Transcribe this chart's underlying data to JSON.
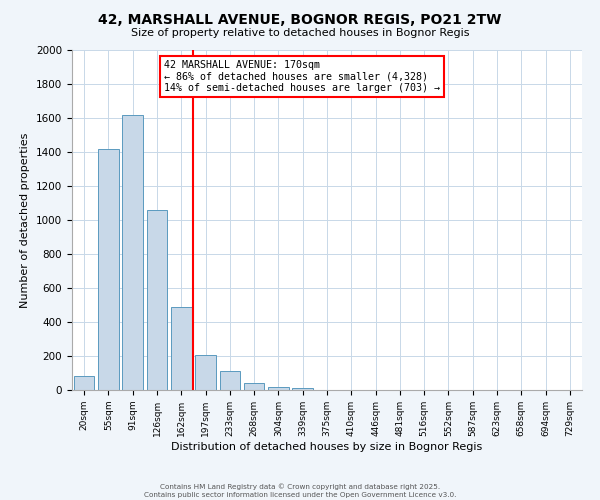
{
  "title_line1": "42, MARSHALL AVENUE, BOGNOR REGIS, PO21 2TW",
  "title_line2": "Size of property relative to detached houses in Bognor Regis",
  "xlabel": "Distribution of detached houses by size in Bognor Regis",
  "ylabel": "Number of detached properties",
  "bar_labels": [
    "20sqm",
    "55sqm",
    "91sqm",
    "126sqm",
    "162sqm",
    "197sqm",
    "233sqm",
    "268sqm",
    "304sqm",
    "339sqm",
    "375sqm",
    "410sqm",
    "446sqm",
    "481sqm",
    "516sqm",
    "552sqm",
    "587sqm",
    "623sqm",
    "658sqm",
    "694sqm",
    "729sqm"
  ],
  "bar_values": [
    80,
    1420,
    1620,
    1060,
    490,
    205,
    110,
    40,
    20,
    10,
    0,
    0,
    0,
    0,
    0,
    0,
    0,
    0,
    0,
    0,
    0
  ],
  "bar_color": "#c8d8e8",
  "bar_edgecolor": "#5a9abf",
  "vline_color": "red",
  "annotation_title": "42 MARSHALL AVENUE: 170sqm",
  "annotation_line2": "← 86% of detached houses are smaller (4,328)",
  "annotation_line3": "14% of semi-detached houses are larger (703) →",
  "ylim": [
    0,
    2000
  ],
  "yticks": [
    0,
    200,
    400,
    600,
    800,
    1000,
    1200,
    1400,
    1600,
    1800,
    2000
  ],
  "footer_line1": "Contains HM Land Registry data © Crown copyright and database right 2025.",
  "footer_line2": "Contains public sector information licensed under the Open Government Licence v3.0.",
  "bg_color": "#f0f5fa",
  "plot_bg_color": "#ffffff",
  "grid_color": "#c8d8e8"
}
